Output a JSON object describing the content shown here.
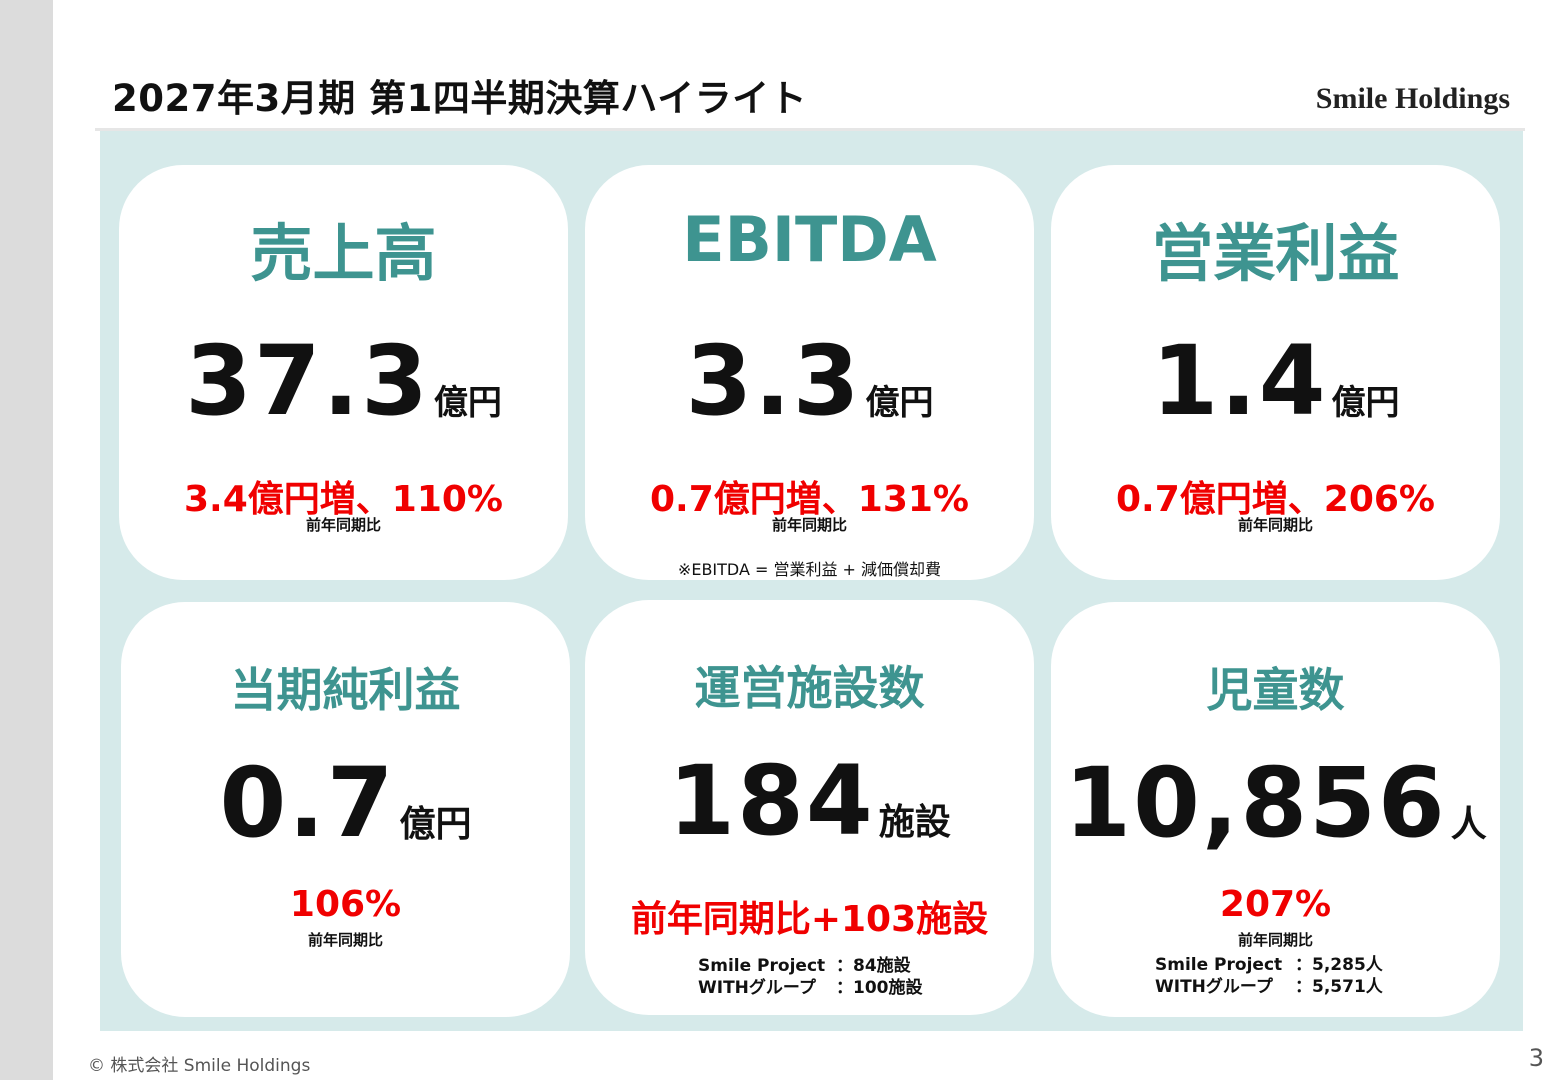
{
  "header": {
    "title": "2027年3月期 第1四半期決算ハイライト",
    "logo_text": "Smile Holdings"
  },
  "cards": [
    {
      "title": "売上高",
      "value": "37.3",
      "unit": "億円",
      "change": "3.4億円増、110%",
      "comparison": "前年同期比"
    },
    {
      "title": "EBITDA",
      "value": "3.3",
      "unit": "億円",
      "change": "0.7億円増、131%",
      "comparison": "前年同期比",
      "note": "※EBITDA = 営業利益 + 減価償却費"
    },
    {
      "title": "営業利益",
      "value": "1.4",
      "unit": "億円",
      "change": "0.7億円増、206%",
      "comparison": "前年同期比"
    },
    {
      "title": "当期純利益",
      "value": "0.7",
      "unit": "億円",
      "change": "106%",
      "comparison": "前年同期比"
    },
    {
      "title": "運営施設数",
      "value": "184",
      "unit": "施設",
      "change": "前年同期比+103施設",
      "breakdown": [
        {
          "label": "Smile Project",
          "value": "：84施設"
        },
        {
          "label": "WITHグループ",
          "value": "：100施設"
        }
      ]
    },
    {
      "title": "児童数",
      "value": "10,856",
      "unit": "人",
      "change": "207%",
      "comparison": "前年同期比",
      "breakdown": [
        {
          "label": "Smile Project",
          "value": "：5,285人"
        },
        {
          "label": "WITHグループ",
          "value": "：5,571人"
        }
      ]
    }
  ],
  "footer": {
    "copyright": "© 株式会社 Smile Holdings",
    "page_number": "3"
  },
  "colors": {
    "accent_teal": "#3e9490",
    "panel_background": "#d6eaea",
    "change_red": "#f00000"
  }
}
